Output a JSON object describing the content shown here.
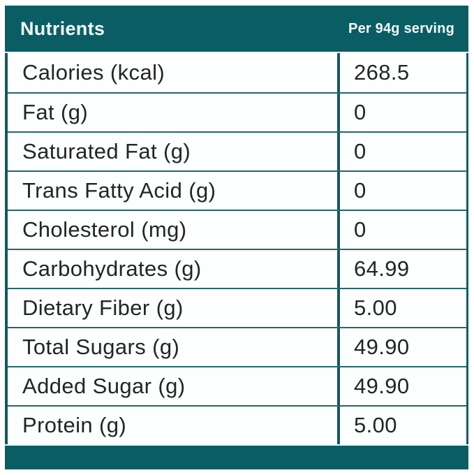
{
  "table": {
    "header": {
      "label": "Nutrients",
      "serving": "Per 94g serving"
    },
    "rows": [
      {
        "nutrient": "Calories (kcal)",
        "value": "268.5"
      },
      {
        "nutrient": "Fat (g)",
        "value": "0"
      },
      {
        "nutrient": "Saturated Fat (g)",
        "value": "0"
      },
      {
        "nutrient": "Trans Fatty Acid (g)",
        "value": "0"
      },
      {
        "nutrient": "Cholesterol (mg)",
        "value": "0"
      },
      {
        "nutrient": "Carbohydrates (g)",
        "value": "64.99"
      },
      {
        "nutrient": "Dietary Fiber (g)",
        "value": "5.00"
      },
      {
        "nutrient": "Total Sugars (g)",
        "value": "49.90"
      },
      {
        "nutrient": "Added Sugar (g)",
        "value": "49.90"
      },
      {
        "nutrient": "Protein (g)",
        "value": "5.00"
      }
    ]
  },
  "colors": {
    "teal": "#0b5d64",
    "divider": "#27666d",
    "gap": "#eaf5f7",
    "text": "#212625",
    "header_text": "#f2fafa"
  }
}
